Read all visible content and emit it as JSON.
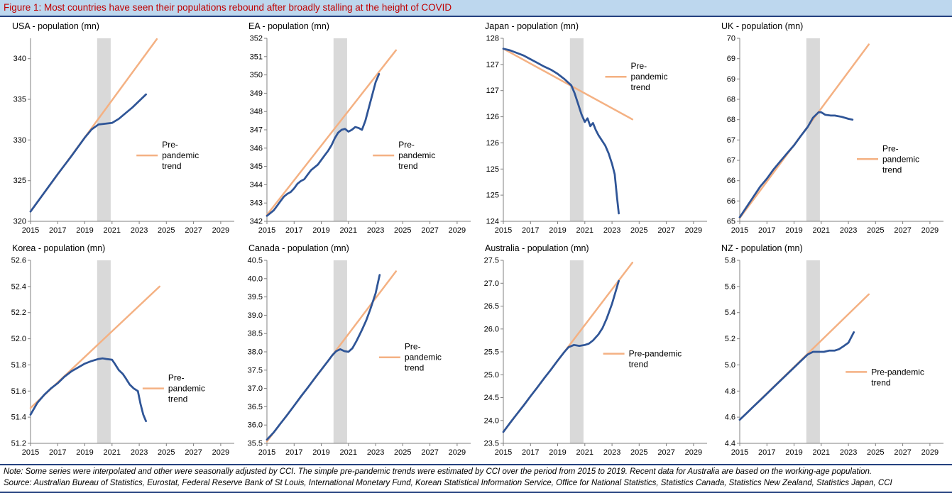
{
  "header": {
    "title": "Figure 1: Most countries have seen their populations rebound after broadly stalling at the height of COVID"
  },
  "footer": {
    "note": "Note: Some series were interpolated and other were seasonally adjusted by CCI.  The simple pre-pandemic trends were estimated by CCI over the period from 2015 to 2019.  Recent data for Australia are based on the working-age population.",
    "source": "Source: Australian Bureau of Statistics, Eurostat, Federal Reserve Bank of St Louis, International Monetary Fund, Korean Statistical Information Service, Office for National Statistics, Statistics Canada, Statistics New Zealand, Statistics Japan, CCI"
  },
  "colors": {
    "actual_line": "#2F5597",
    "trend_line": "#F4B183",
    "covid_band": "#D9D9D9",
    "header_bg": "#BDD7EE",
    "header_text": "#C00000",
    "rule": "#24417F",
    "axis": "#808080"
  },
  "chart_data": [
    {
      "type": "line",
      "title": "USA - population (mn)",
      "x_range": [
        2015,
        2030
      ],
      "x_ticks": [
        2015,
        2017,
        2019,
        2021,
        2023,
        2025,
        2027,
        2029
      ],
      "y_range": [
        320,
        342.5
      ],
      "y_tick_values": [
        320,
        325,
        330,
        335,
        340
      ],
      "y_tick_labels": [
        "320",
        "325",
        "330",
        "335",
        "340"
      ],
      "covid_band": [
        2019.9,
        2020.9
      ],
      "legend": {
        "lines": [
          "Pre-",
          "pandemic",
          "trend"
        ],
        "fx": 0.52,
        "fy": 0.64
      },
      "series": [
        {
          "name": "Pre-pandemic trend",
          "role": "trend",
          "x": [
            2015,
            2024.3
          ],
          "y": [
            321.2,
            342.4
          ]
        },
        {
          "name": "Population",
          "role": "actual",
          "x": [
            2015,
            2016,
            2017,
            2018,
            2019,
            2019.5,
            2020,
            2020.5,
            2021,
            2021.5,
            2022,
            2022.5,
            2023,
            2023.5
          ],
          "y": [
            321.2,
            323.5,
            325.8,
            328.0,
            330.3,
            331.3,
            331.9,
            332.0,
            332.1,
            332.6,
            333.3,
            334.0,
            334.8,
            335.6
          ]
        }
      ]
    },
    {
      "type": "line",
      "title": "EA - population (mn)",
      "x_range": [
        2015,
        2030
      ],
      "x_ticks": [
        2015,
        2017,
        2019,
        2021,
        2023,
        2025,
        2027,
        2029
      ],
      "y_range": [
        342,
        352
      ],
      "y_tick_values": [
        342,
        343,
        344,
        345,
        346,
        347,
        348,
        349,
        350,
        351,
        352
      ],
      "y_tick_labels": [
        "342",
        "343",
        "344",
        "345",
        "346",
        "347",
        "348",
        "349",
        "350",
        "351",
        "352"
      ],
      "covid_band": [
        2019.9,
        2020.9
      ],
      "legend": {
        "lines": [
          "Pre-",
          "pandemic",
          "trend"
        ],
        "fx": 0.52,
        "fy": 0.64
      },
      "series": [
        {
          "name": "Pre-pandemic trend",
          "role": "trend",
          "x": [
            2015,
            2024.5
          ],
          "y": [
            342.35,
            351.35
          ]
        },
        {
          "name": "Population",
          "role": "actual",
          "x": [
            2015,
            2015.25,
            2015.5,
            2015.75,
            2016,
            2016.25,
            2016.5,
            2016.75,
            2017,
            2017.25,
            2017.5,
            2017.75,
            2018,
            2018.25,
            2018.5,
            2018.75,
            2019,
            2019.25,
            2019.5,
            2019.75,
            2020,
            2020.25,
            2020.5,
            2020.75,
            2021,
            2021.25,
            2021.5,
            2021.75,
            2022,
            2022.25,
            2022.5,
            2022.75,
            2023,
            2023.25
          ],
          "y": [
            342.3,
            342.45,
            342.6,
            342.85,
            343.1,
            343.35,
            343.5,
            343.6,
            343.8,
            344.05,
            344.2,
            344.3,
            344.55,
            344.8,
            344.95,
            345.1,
            345.35,
            345.6,
            345.85,
            346.15,
            346.55,
            346.85,
            347.0,
            347.05,
            346.9,
            347.0,
            347.15,
            347.1,
            347.0,
            347.5,
            348.2,
            348.9,
            349.6,
            350.05
          ]
        }
      ]
    },
    {
      "type": "line",
      "title": "Japan - population (mn)",
      "x_range": [
        2015,
        2030
      ],
      "x_ticks": [
        2015,
        2017,
        2019,
        2021,
        2023,
        2025,
        2027,
        2029
      ],
      "y_range": [
        124,
        127.5
      ],
      "y_tick_values": [
        124,
        124.5,
        125,
        125.5,
        126,
        126.5,
        127,
        127.5
      ],
      "y_tick_labels": [
        "124",
        "125",
        "125",
        "126",
        "126",
        "127",
        "127",
        "128"
      ],
      "covid_band": [
        2019.9,
        2020.9
      ],
      "legend": {
        "lines": [
          "Pre-",
          "pandemic",
          "trend"
        ],
        "fx": 0.5,
        "fy": 0.21
      },
      "series": [
        {
          "name": "Pre-pandemic trend",
          "role": "trend",
          "x": [
            2015,
            2024.5
          ],
          "y": [
            127.3,
            125.95
          ]
        },
        {
          "name": "Population",
          "role": "actual",
          "x": [
            2015,
            2015.5,
            2016,
            2016.5,
            2017,
            2017.5,
            2018,
            2018.5,
            2019,
            2019.5,
            2020,
            2020.25,
            2020.5,
            2020.75,
            2021,
            2021.2,
            2021.4,
            2021.6,
            2021.8,
            2022,
            2022.25,
            2022.5,
            2022.75,
            2023,
            2023.2,
            2023.35,
            2023.5
          ],
          "y": [
            127.3,
            127.27,
            127.22,
            127.17,
            127.1,
            127.03,
            126.96,
            126.9,
            126.82,
            126.72,
            126.6,
            126.45,
            126.25,
            126.05,
            125.9,
            125.97,
            125.82,
            125.88,
            125.75,
            125.65,
            125.55,
            125.45,
            125.3,
            125.1,
            124.9,
            124.5,
            124.15
          ]
        }
      ]
    },
    {
      "type": "line",
      "title": "UK - population (mn)",
      "x_range": [
        2015,
        2030
      ],
      "x_ticks": [
        2015,
        2017,
        2019,
        2021,
        2023,
        2025,
        2027,
        2029
      ],
      "y_range": [
        65,
        69.5
      ],
      "y_tick_values": [
        65,
        65.5,
        66,
        66.5,
        67,
        67.5,
        68,
        68.5,
        69,
        69.5
      ],
      "y_tick_labels": [
        "65",
        "66",
        "66",
        "67",
        "67",
        "68",
        "68",
        "69",
        "69",
        "70"
      ],
      "covid_band": [
        2019.9,
        2020.9
      ],
      "legend": {
        "lines": [
          "Pre-",
          "pandemic",
          "trend"
        ],
        "fx": 0.575,
        "fy": 0.66
      },
      "series": [
        {
          "name": "Pre-pandemic trend",
          "role": "trend",
          "x": [
            2015,
            2024.5
          ],
          "y": [
            65.08,
            69.35
          ]
        },
        {
          "name": "Population",
          "role": "actual",
          "x": [
            2015,
            2015.5,
            2016,
            2016.5,
            2017,
            2017.5,
            2018,
            2018.5,
            2019,
            2019.5,
            2020,
            2020.4,
            2020.8,
            2021,
            2021.3,
            2021.7,
            2022,
            2022.5,
            2023,
            2023.3
          ],
          "y": [
            65.1,
            65.35,
            65.6,
            65.85,
            66.05,
            66.28,
            66.48,
            66.68,
            66.87,
            67.1,
            67.32,
            67.55,
            67.68,
            67.68,
            67.62,
            67.6,
            67.6,
            67.57,
            67.52,
            67.5
          ]
        }
      ]
    },
    {
      "type": "line",
      "title": "Korea - population (mn)",
      "x_range": [
        2015,
        2030
      ],
      "x_ticks": [
        2015,
        2017,
        2019,
        2021,
        2023,
        2025,
        2027,
        2029
      ],
      "y_range": [
        51.2,
        52.6
      ],
      "y_tick_values": [
        51.2,
        51.4,
        51.6,
        51.8,
        52.0,
        52.2,
        52.4,
        52.6
      ],
      "y_tick_labels": [
        "51.2",
        "51.4",
        "51.6",
        "51.8",
        "52.0",
        "52.2",
        "52.4",
        "52.6"
      ],
      "covid_band": [
        2019.9,
        2020.9
      ],
      "legend": {
        "lines": [
          "Pre-",
          "pandemic",
          "trend"
        ],
        "fx": 0.55,
        "fy": 0.7
      },
      "series": [
        {
          "name": "Pre-pandemic trend",
          "role": "trend",
          "x": [
            2015,
            2024.5
          ],
          "y": [
            51.47,
            52.4
          ]
        },
        {
          "name": "Population",
          "role": "actual",
          "x": [
            2015,
            2015.5,
            2016,
            2016.5,
            2017,
            2017.5,
            2018,
            2018.5,
            2019,
            2019.5,
            2020,
            2020.3,
            2020.6,
            2021,
            2021.2,
            2021.5,
            2021.8,
            2022,
            2022.3,
            2022.6,
            2022.9,
            2023.1,
            2023.3,
            2023.5
          ],
          "y": [
            51.42,
            51.51,
            51.57,
            51.62,
            51.66,
            51.71,
            51.75,
            51.78,
            51.81,
            51.83,
            51.845,
            51.85,
            51.845,
            51.84,
            51.81,
            51.76,
            51.73,
            51.7,
            51.65,
            51.62,
            51.6,
            51.5,
            51.42,
            51.37
          ]
        }
      ]
    },
    {
      "type": "line",
      "title": "Canada - population (mn)",
      "x_range": [
        2015,
        2030
      ],
      "x_ticks": [
        2015,
        2017,
        2019,
        2021,
        2023,
        2025,
        2027,
        2029
      ],
      "y_range": [
        35.5,
        40.5
      ],
      "y_tick_values": [
        35.5,
        36.0,
        36.5,
        37.0,
        37.5,
        38.0,
        38.5,
        39.0,
        39.5,
        40.0,
        40.5
      ],
      "y_tick_labels": [
        "35.5",
        "36.0",
        "36.5",
        "37.0",
        "37.5",
        "38.0",
        "38.5",
        "39.0",
        "39.5",
        "40.0",
        "40.5"
      ],
      "covid_band": [
        2019.9,
        2020.9
      ],
      "legend": {
        "lines": [
          "Pre-",
          "pandemic",
          "trend"
        ],
        "fx": 0.55,
        "fy": 0.53
      },
      "series": [
        {
          "name": "Pre-pandemic trend",
          "role": "trend",
          "x": [
            2015,
            2024.5
          ],
          "y": [
            35.55,
            40.2
          ]
        },
        {
          "name": "Population",
          "role": "actual",
          "x": [
            2015,
            2015.5,
            2016,
            2016.5,
            2017,
            2017.5,
            2018,
            2018.5,
            2019,
            2019.5,
            2019.8,
            2020.1,
            2020.4,
            2020.7,
            2021,
            2021.3,
            2021.6,
            2022,
            2022.3,
            2022.6,
            2023,
            2023.3
          ],
          "y": [
            35.6,
            35.8,
            36.04,
            36.28,
            36.53,
            36.78,
            37.02,
            37.27,
            37.51,
            37.75,
            37.9,
            38.02,
            38.07,
            38.02,
            38.0,
            38.1,
            38.3,
            38.6,
            38.85,
            39.15,
            39.6,
            40.1
          ]
        }
      ]
    },
    {
      "type": "line",
      "title": "Australia - population (mn)",
      "x_range": [
        2015,
        2030
      ],
      "x_ticks": [
        2015,
        2017,
        2019,
        2021,
        2023,
        2025,
        2027,
        2029
      ],
      "y_range": [
        23.5,
        27.5
      ],
      "y_tick_values": [
        23.5,
        24.0,
        24.5,
        25.0,
        25.5,
        26.0,
        26.5,
        27.0,
        27.5
      ],
      "y_tick_labels": [
        "23.5",
        "24.0",
        "24.5",
        "25.0",
        "25.5",
        "26.0",
        "26.5",
        "27.0",
        "27.5"
      ],
      "covid_band": [
        2019.9,
        2020.9
      ],
      "legend": {
        "lines": [
          "Pre-pandemic",
          "trend"
        ],
        "fx": 0.49,
        "fy": 0.51
      },
      "series": [
        {
          "name": "Pre-pandemic trend",
          "role": "trend",
          "x": [
            2015,
            2024.5
          ],
          "y": [
            23.75,
            27.45
          ]
        },
        {
          "name": "Population",
          "role": "actual",
          "x": [
            2015,
            2015.5,
            2016,
            2016.5,
            2017,
            2017.5,
            2018,
            2018.5,
            2019,
            2019.5,
            2019.8,
            2020.2,
            2020.6,
            2021,
            2021.3,
            2021.6,
            2022,
            2022.3,
            2022.6,
            2023,
            2023.3,
            2023.5
          ],
          "y": [
            23.75,
            23.95,
            24.14,
            24.33,
            24.53,
            24.72,
            24.92,
            25.11,
            25.31,
            25.5,
            25.6,
            25.65,
            25.63,
            25.65,
            25.68,
            25.75,
            25.88,
            26.02,
            26.22,
            26.55,
            26.85,
            27.05
          ]
        }
      ]
    },
    {
      "type": "line",
      "title": "NZ - population (mn)",
      "x_range": [
        2015,
        2030
      ],
      "x_ticks": [
        2015,
        2017,
        2019,
        2021,
        2023,
        2025,
        2027,
        2029
      ],
      "y_range": [
        4.4,
        5.8
      ],
      "y_tick_values": [
        4.4,
        4.6,
        4.8,
        5.0,
        5.2,
        5.4,
        5.6,
        5.8
      ],
      "y_tick_labels": [
        "4.4",
        "4.6",
        "4.8",
        "5.0",
        "5.2",
        "5.4",
        "5.6",
        "5.8"
      ],
      "covid_band": [
        2019.9,
        2020.9
      ],
      "legend": {
        "lines": [
          "Pre-pandemic",
          "trend"
        ],
        "fx": 0.52,
        "fy": 0.61
      },
      "series": [
        {
          "name": "Pre-pandemic trend",
          "role": "trend",
          "x": [
            2015,
            2024.5
          ],
          "y": [
            4.58,
            5.54
          ]
        },
        {
          "name": "Population",
          "role": "actual",
          "x": [
            2015,
            2015.5,
            2016,
            2016.5,
            2017,
            2017.5,
            2018,
            2018.5,
            2019,
            2019.5,
            2020,
            2020.4,
            2020.8,
            2021.2,
            2021.6,
            2022,
            2022.3,
            2022.6,
            2023,
            2023.2,
            2023.4
          ],
          "y": [
            4.58,
            4.63,
            4.68,
            4.73,
            4.78,
            4.83,
            4.88,
            4.93,
            4.98,
            5.03,
            5.08,
            5.1,
            5.1,
            5.1,
            5.11,
            5.11,
            5.12,
            5.14,
            5.17,
            5.21,
            5.25
          ]
        }
      ]
    }
  ]
}
